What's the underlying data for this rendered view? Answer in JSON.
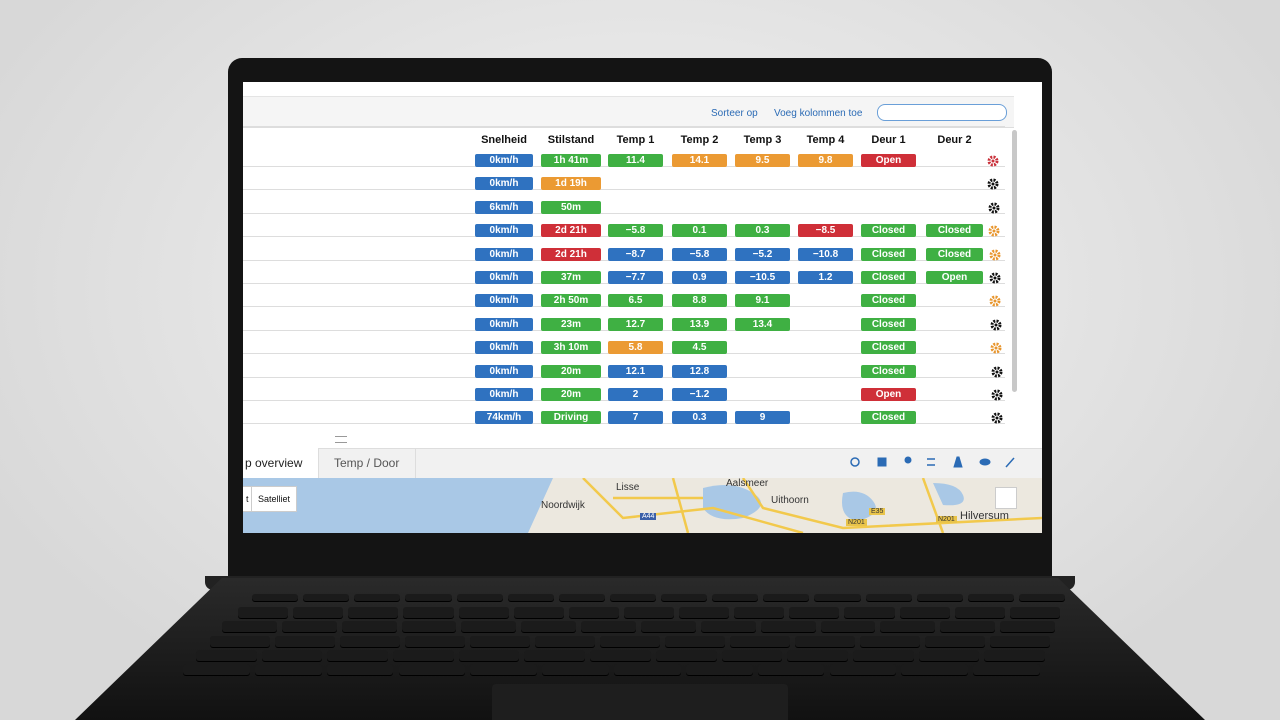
{
  "toolbar": {
    "sort": "Sorteer op",
    "add_columns": "Voeg kolommen toe"
  },
  "table": {
    "columns": [
      "Snelheid",
      "Stilstand",
      "Temp 1",
      "Temp 2",
      "Temp 3",
      "Temp 4",
      "Deur 1",
      "Deur 2"
    ],
    "rows": [
      {
        "cells": [
          {
            "text": "0km/h",
            "color": "blue"
          },
          {
            "text": "1h 41m",
            "color": "green"
          },
          {
            "text": "11.4",
            "color": "green"
          },
          {
            "text": "14.1",
            "color": "orange"
          },
          {
            "text": "9.5",
            "color": "orange"
          },
          {
            "text": "9.8",
            "color": "orange"
          },
          {
            "text": "Open",
            "color": "red"
          },
          null
        ],
        "gear": "red"
      },
      {
        "cells": [
          {
            "text": "0km/h",
            "color": "blue"
          },
          {
            "text": "1d 19h",
            "color": "orange"
          },
          null,
          null,
          null,
          null,
          null,
          null
        ],
        "gear": "black"
      },
      {
        "cells": [
          {
            "text": "6km/h",
            "color": "blue"
          },
          {
            "text": "50m",
            "color": "green"
          },
          null,
          null,
          null,
          null,
          null,
          null
        ],
        "gear": "black"
      },
      {
        "cells": [
          {
            "text": "0km/h",
            "color": "blue"
          },
          {
            "text": "2d 21h",
            "color": "red"
          },
          {
            "text": "−5.8",
            "color": "green"
          },
          {
            "text": "0.1",
            "color": "green"
          },
          {
            "text": "0.3",
            "color": "green"
          },
          {
            "text": "−8.5",
            "color": "red"
          },
          {
            "text": "Closed",
            "color": "green"
          },
          {
            "text": "Closed",
            "color": "green"
          }
        ],
        "gear": "orange"
      },
      {
        "cells": [
          {
            "text": "0km/h",
            "color": "blue"
          },
          {
            "text": "2d 21h",
            "color": "red"
          },
          {
            "text": "−8.7",
            "color": "blue"
          },
          {
            "text": "−5.8",
            "color": "blue"
          },
          {
            "text": "−5.2",
            "color": "blue"
          },
          {
            "text": "−10.8",
            "color": "blue"
          },
          {
            "text": "Closed",
            "color": "green"
          },
          {
            "text": "Closed",
            "color": "green"
          }
        ],
        "gear": "orange"
      },
      {
        "cells": [
          {
            "text": "0km/h",
            "color": "blue"
          },
          {
            "text": "37m",
            "color": "green"
          },
          {
            "text": "−7.7",
            "color": "blue"
          },
          {
            "text": "0.9",
            "color": "blue"
          },
          {
            "text": "−10.5",
            "color": "blue"
          },
          {
            "text": "1.2",
            "color": "blue"
          },
          {
            "text": "Closed",
            "color": "green"
          },
          {
            "text": "Open",
            "color": "green"
          }
        ],
        "gear": "black"
      },
      {
        "cells": [
          {
            "text": "0km/h",
            "color": "blue"
          },
          {
            "text": "2h 50m",
            "color": "green"
          },
          {
            "text": "6.5",
            "color": "green"
          },
          {
            "text": "8.8",
            "color": "green"
          },
          {
            "text": "9.1",
            "color": "green"
          },
          null,
          {
            "text": "Closed",
            "color": "green"
          },
          null
        ],
        "gear": "orange"
      },
      {
        "cells": [
          {
            "text": "0km/h",
            "color": "blue"
          },
          {
            "text": "23m",
            "color": "green"
          },
          {
            "text": "12.7",
            "color": "green"
          },
          {
            "text": "13.9",
            "color": "green"
          },
          {
            "text": "13.4",
            "color": "green"
          },
          null,
          {
            "text": "Closed",
            "color": "green"
          },
          null
        ],
        "gear": "black"
      },
      {
        "cells": [
          {
            "text": "0km/h",
            "color": "blue"
          },
          {
            "text": "3h 10m",
            "color": "green"
          },
          {
            "text": "5.8",
            "color": "orange"
          },
          {
            "text": "4.5",
            "color": "green"
          },
          null,
          null,
          {
            "text": "Closed",
            "color": "green"
          },
          null
        ],
        "gear": "orange"
      },
      {
        "cells": [
          {
            "text": "0km/h",
            "color": "blue"
          },
          {
            "text": "20m",
            "color": "green"
          },
          {
            "text": "12.1",
            "color": "blue"
          },
          {
            "text": "12.8",
            "color": "blue"
          },
          null,
          null,
          {
            "text": "Closed",
            "color": "green"
          },
          null
        ],
        "gear": "black"
      },
      {
        "cells": [
          {
            "text": "0km/h",
            "color": "blue"
          },
          {
            "text": "20m",
            "color": "green"
          },
          {
            "text": "2",
            "color": "blue"
          },
          {
            "text": "−1.2",
            "color": "blue"
          },
          null,
          null,
          {
            "text": "Open",
            "color": "red"
          },
          null
        ],
        "gear": "black"
      },
      {
        "cells": [
          {
            "text": "74km/h",
            "color": "blue"
          },
          {
            "text": "Driving",
            "color": "green"
          },
          {
            "text": "7",
            "color": "blue"
          },
          {
            "text": "0.3",
            "color": "blue"
          },
          {
            "text": "9",
            "color": "blue"
          },
          null,
          {
            "text": "Closed",
            "color": "green"
          },
          null
        ],
        "gear": "black"
      }
    ]
  },
  "tabs": [
    "p overview",
    "Temp / Door"
  ],
  "map": {
    "buttons": [
      "t",
      "Satelliet"
    ],
    "places": [
      "Lisse",
      "Aalsmeer",
      "Noordwijk",
      "Uithoorn",
      "Hilversum"
    ],
    "roads": [
      "A44",
      "E35",
      "N201",
      "N201"
    ]
  }
}
